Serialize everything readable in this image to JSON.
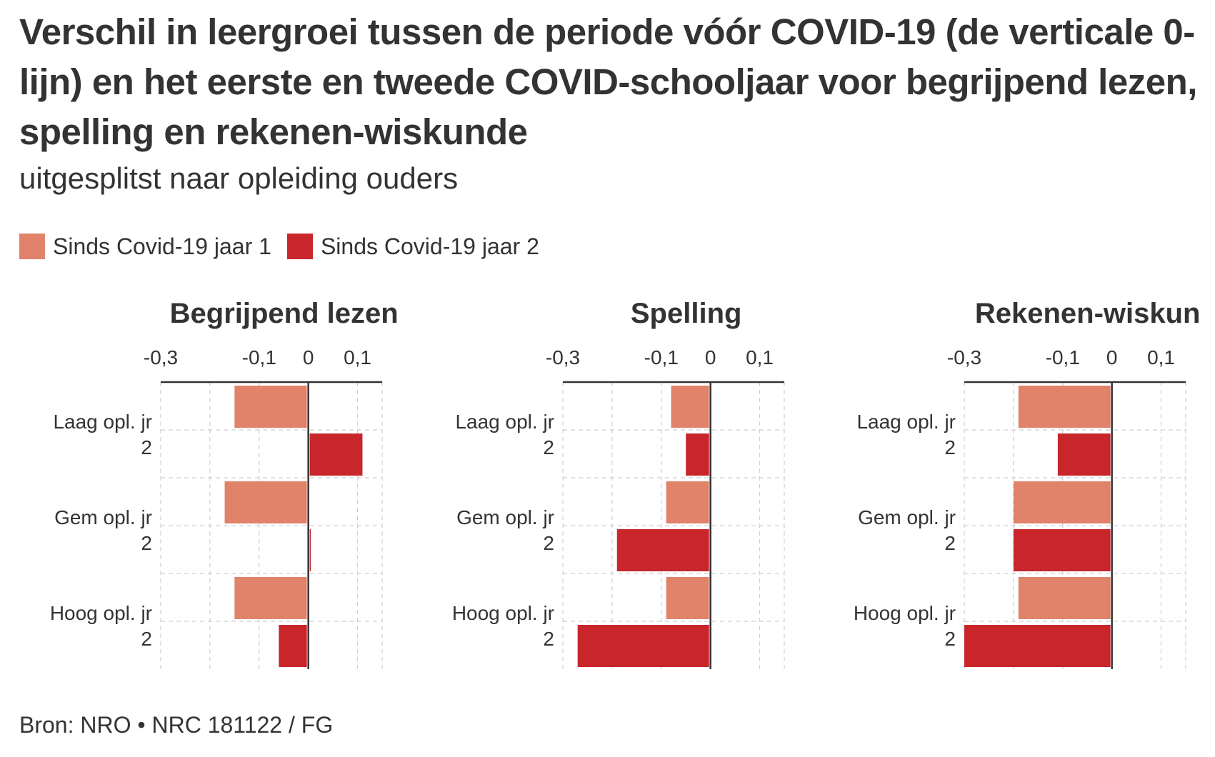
{
  "title": "Verschil in leergroei tussen de periode vóór COVID-19 (de verticale 0-lijn) en het eerste en tweede COVID-schooljaar voor begrijpend lezen, spelling en rekenen-wiskunde",
  "subtitle": "uitgesplitst naar opleiding ouders",
  "legend": [
    {
      "label": "Sinds Covid-19 jaar 1",
      "color": "#e0836a"
    },
    {
      "label": "Sinds Covid-19 jaar 2",
      "color": "#c8262b"
    }
  ],
  "source": "Bron: NRO • NRC 181122 / FG",
  "chart_data": [
    {
      "type": "bar",
      "orientation": "horizontal",
      "title": "Begrijpend lezen",
      "x_ticks": [
        "-0,3",
        "-0,1",
        "0",
        "0,1"
      ],
      "xlim": [
        -0.3,
        0.15
      ],
      "categories": [
        {
          "lines": [
            "",
            ""
          ]
        },
        {
          "lines": [
            "Laag opl. jr",
            "2"
          ]
        },
        {
          "lines": [
            "",
            ""
          ]
        },
        {
          "lines": [
            "Gem opl. jr",
            "2"
          ]
        },
        {
          "lines": [
            "",
            ""
          ]
        },
        {
          "lines": [
            "Hoog opl. jr",
            "2"
          ]
        }
      ],
      "values": [
        -0.15,
        0.11,
        -0.17,
        0.005,
        -0.15,
        -0.06
      ],
      "series_index": [
        0,
        1,
        0,
        1,
        0,
        1
      ]
    },
    {
      "type": "bar",
      "orientation": "horizontal",
      "title": "Spelling",
      "x_ticks": [
        "-0,3",
        "-0,1",
        "0",
        "0,1"
      ],
      "xlim": [
        -0.3,
        0.15
      ],
      "categories": [
        {
          "lines": [
            "",
            ""
          ]
        },
        {
          "lines": [
            "Laag opl. jr",
            "2"
          ]
        },
        {
          "lines": [
            "",
            ""
          ]
        },
        {
          "lines": [
            "Gem opl. jr",
            "2"
          ]
        },
        {
          "lines": [
            "",
            ""
          ]
        },
        {
          "lines": [
            "Hoog opl. jr",
            "2"
          ]
        }
      ],
      "values": [
        -0.08,
        -0.05,
        -0.09,
        -0.19,
        -0.09,
        -0.27
      ],
      "series_index": [
        0,
        1,
        0,
        1,
        0,
        1
      ]
    },
    {
      "type": "bar",
      "orientation": "horizontal",
      "title": "Rekenen-wiskun",
      "x_ticks": [
        "-0,3",
        "-0,1",
        "0",
        "0,1"
      ],
      "xlim": [
        -0.3,
        0.15
      ],
      "categories": [
        {
          "lines": [
            "",
            ""
          ]
        },
        {
          "lines": [
            "Laag opl. jr",
            "2"
          ]
        },
        {
          "lines": [
            "",
            ""
          ]
        },
        {
          "lines": [
            "Gem opl. jr",
            "2"
          ]
        },
        {
          "lines": [
            "",
            ""
          ]
        },
        {
          "lines": [
            "Hoog opl. jr",
            "2"
          ]
        }
      ],
      "values": [
        -0.19,
        -0.11,
        -0.2,
        -0.2,
        -0.19,
        -0.3
      ],
      "series_index": [
        0,
        1,
        0,
        1,
        0,
        1
      ]
    }
  ]
}
